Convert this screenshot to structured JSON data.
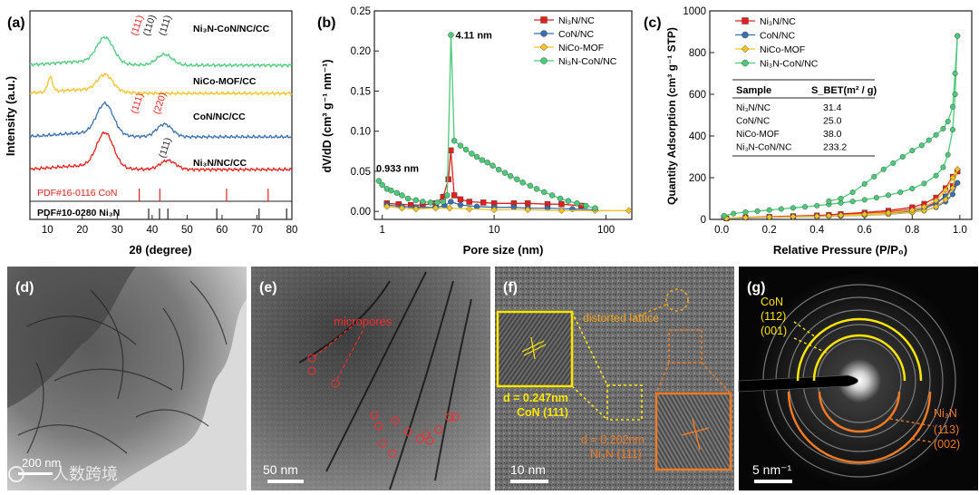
{
  "panels": {
    "a": {
      "label": "(a)"
    },
    "b": {
      "label": "(b)"
    },
    "c": {
      "label": "(c)"
    },
    "d": {
      "label": "(d)",
      "scale": "200 nm"
    },
    "e": {
      "label": "(e)",
      "scale": "50 nm",
      "annotation": "micropores"
    },
    "f": {
      "label": "(f)",
      "scale": "10 nm",
      "annotation": "distorted lattice",
      "d1": "d = 0.247nm",
      "d1_phase": "CoN (111)",
      "d2": "d = 0.202nm",
      "d2_phase": "Ni₃N (111)"
    },
    "g": {
      "label": "(g)",
      "scale": "5 nm⁻¹",
      "con_label": "CoN",
      "con_112": "(112)",
      "con_001": "(001)",
      "ni_label": "Ni₃N",
      "ni_113": "(113)",
      "ni_002": "(002)"
    }
  },
  "watermark": "人数跨境",
  "chart_data": [
    {
      "type": "line",
      "panel": "a",
      "xlabel": "2θ (degree)",
      "ylabel": "Intensity (a.u.)",
      "xlim": [
        5,
        80
      ],
      "xticks": [
        10,
        20,
        30,
        40,
        50,
        60,
        70,
        80
      ],
      "series": [
        {
          "name": "Ni₃N-CoN/NC/CC",
          "color": "#4dc97a",
          "peaks": [
            26.5,
            43.5
          ],
          "peak_labels": [
            {
              "text": "(111)",
              "x": 36.5,
              "color": "#e3211c"
            },
            {
              "text": "(110)",
              "x": 40,
              "color": "#222222"
            },
            {
              "text": "(111)",
              "x": 44.5,
              "color": "#222222"
            }
          ]
        },
        {
          "name": "NiCo-MOF/CC",
          "color": "#f2c226",
          "peaks": [
            10.8,
            26.5
          ]
        },
        {
          "name": "CoN/NC/CC",
          "color": "#3a6fb0",
          "peaks": [
            26.5,
            43.5
          ],
          "peak_labels": [
            {
              "text": "(111)",
              "x": 36.5,
              "color": "#e3211c"
            },
            {
              "text": "(220)",
              "x": 43,
              "color": "#e3211c"
            }
          ]
        },
        {
          "name": "Ni₃N/NC/CC",
          "color": "#e3211c",
          "peaks": [
            26.5,
            44.5
          ],
          "peak_labels": [
            {
              "text": "(111)",
              "x": 44.5,
              "color": "#222222"
            }
          ]
        }
      ],
      "references": [
        {
          "name": "PDF#16-0116 CoN",
          "color": "#e3211c",
          "lines": [
            36.3,
            42.2,
            61.3,
            73.2
          ]
        },
        {
          "name": "PDF#10-0280 Ni₃N",
          "color": "#222222",
          "lines": [
            39.0,
            42.1,
            44.5,
            58.5,
            70.6,
            78.5
          ]
        }
      ]
    },
    {
      "type": "line",
      "panel": "b",
      "xlabel": "Pore size (nm)",
      "ylabel": "dV/dD (cm³ g⁻¹ nm⁻¹)",
      "xscale": "log",
      "xlim": [
        0.85,
        170
      ],
      "ylim": [
        -0.01,
        0.25
      ],
      "xticks": [
        1,
        10,
        100
      ],
      "yticks": [
        0.0,
        0.05,
        0.1,
        0.15,
        0.2,
        0.25
      ],
      "legend": "top-right",
      "annotations": [
        {
          "text": "4.11 nm",
          "x": 4.11,
          "y": 0.22
        },
        {
          "text": "0.933 nm",
          "x": 0.933,
          "y": 0.045
        }
      ],
      "series": [
        {
          "name": "Ni₃N/NC",
          "color": "#e3211c",
          "marker": "square",
          "x": [
            1.1,
            1.4,
            1.8,
            2.3,
            3.0,
            3.5,
            3.9,
            4.1,
            4.4,
            5.0,
            6.0,
            8.0,
            10,
            15,
            20,
            30,
            40,
            60
          ],
          "y": [
            0.01,
            0.009,
            0.008,
            0.008,
            0.01,
            0.018,
            0.04,
            0.076,
            0.02,
            0.015,
            0.012,
            0.011,
            0.01,
            0.01,
            0.01,
            0.009,
            0.009,
            0.007
          ]
        },
        {
          "name": "CoN/NC",
          "color": "#3a6fb0",
          "marker": "circle",
          "x": [
            1.1,
            1.5,
            2.0,
            3.0,
            3.6,
            4.1,
            5.0,
            7.0,
            10,
            15,
            20,
            30,
            50,
            80
          ],
          "y": [
            0.008,
            0.006,
            0.005,
            0.005,
            0.007,
            0.012,
            0.008,
            0.006,
            0.005,
            0.005,
            0.004,
            0.004,
            0.003,
            0.002
          ]
        },
        {
          "name": "NiCo-MOF",
          "color": "#f2c226",
          "marker": "diamond",
          "x": [
            1.1,
            1.5,
            2.0,
            3.0,
            4.0,
            6.0,
            10,
            20,
            40,
            80,
            160
          ],
          "y": [
            0.006,
            0.004,
            0.003,
            0.004,
            0.004,
            0.003,
            0.002,
            0.002,
            0.001,
            0.001,
            0.001
          ]
        },
        {
          "name": "Ni₃N-CoN/NC",
          "color": "#4dc97a",
          "marker": "circle",
          "x": [
            0.93,
            1.0,
            1.1,
            1.2,
            1.35,
            1.5,
            1.7,
            2.0,
            2.3,
            2.7,
            3.1,
            3.5,
            3.8,
            4.11,
            4.4,
            5.0,
            5.6,
            6.3,
            7.0,
            7.8,
            8.7,
            9.7,
            11,
            12.5,
            14,
            16,
            18,
            21,
            24,
            28,
            33,
            39,
            46,
            55,
            66,
            80
          ],
          "y": [
            0.038,
            0.033,
            0.028,
            0.026,
            0.023,
            0.02,
            0.016,
            0.014,
            0.012,
            0.011,
            0.011,
            0.012,
            0.02,
            0.22,
            0.088,
            0.082,
            0.077,
            0.072,
            0.068,
            0.064,
            0.061,
            0.057,
            0.052,
            0.048,
            0.044,
            0.04,
            0.036,
            0.032,
            0.028,
            0.024,
            0.02,
            0.016,
            0.013,
            0.01,
            0.007,
            0.004
          ]
        }
      ]
    },
    {
      "type": "line",
      "panel": "c",
      "xlabel": "Relative Pressure (P/P₀)",
      "ylabel": "Quantity Adsorption (cm³ g⁻¹ STP)",
      "xlim": [
        -0.05,
        1.05
      ],
      "ylim": [
        0,
        1000
      ],
      "xticks": [
        0.0,
        0.2,
        0.4,
        0.6,
        0.8,
        1.0
      ],
      "yticks": [
        0,
        200,
        400,
        600,
        800,
        1000
      ],
      "legend": "top-left",
      "table": {
        "headers": [
          "Sample",
          "S_BET(m² / g)"
        ],
        "rows": [
          [
            "Ni₃N/NC",
            "31.4"
          ],
          [
            "CoN/NC",
            "25.0"
          ],
          [
            "NiCo-MOF",
            "38.0"
          ],
          [
            "Ni₃N-CoN/NC",
            "233.2"
          ]
        ]
      },
      "series": [
        {
          "name": "Ni₃N/NC",
          "color": "#e3211c",
          "marker": "square",
          "adsorption_x": [
            0.02,
            0.1,
            0.2,
            0.3,
            0.4,
            0.5,
            0.6,
            0.7,
            0.8,
            0.85,
            0.9,
            0.94,
            0.97,
            0.99
          ],
          "adsorption_y": [
            5,
            10,
            13,
            16,
            19,
            23,
            28,
            35,
            48,
            60,
            80,
            110,
            160,
            230
          ],
          "desorption_x": [
            0.99,
            0.97,
            0.94,
            0.9,
            0.85,
            0.8,
            0.7,
            0.6,
            0.5,
            0.45
          ],
          "desorption_y": [
            230,
            205,
            150,
            105,
            75,
            58,
            42,
            33,
            26,
            22
          ]
        },
        {
          "name": "CoN/NC",
          "color": "#3a6fb0",
          "marker": "circle",
          "adsorption_x": [
            0.02,
            0.1,
            0.2,
            0.3,
            0.4,
            0.5,
            0.6,
            0.7,
            0.8,
            0.85,
            0.9,
            0.94,
            0.97,
            0.99
          ],
          "adsorption_y": [
            4,
            8,
            10,
            12,
            14,
            17,
            20,
            25,
            34,
            42,
            58,
            85,
            120,
            175
          ],
          "desorption_x": [
            0.99,
            0.97,
            0.94,
            0.9,
            0.85,
            0.8,
            0.7,
            0.6,
            0.5,
            0.45
          ],
          "desorption_y": [
            175,
            150,
            110,
            75,
            52,
            40,
            30,
            24,
            19,
            16
          ]
        },
        {
          "name": "NiCo-MOF",
          "color": "#f2c226",
          "marker": "diamond",
          "adsorption_x": [
            0.02,
            0.1,
            0.2,
            0.3,
            0.4,
            0.5,
            0.6,
            0.7,
            0.8,
            0.85,
            0.9,
            0.94,
            0.97,
            0.99
          ],
          "adsorption_y": [
            5,
            9,
            11,
            13,
            15,
            18,
            21,
            26,
            34,
            42,
            60,
            95,
            150,
            240
          ],
          "desorption_x": [
            0.99,
            0.97,
            0.94,
            0.9,
            0.85,
            0.8,
            0.7,
            0.6,
            0.5,
            0.45
          ],
          "desorption_y": [
            240,
            200,
            140,
            90,
            60,
            44,
            32,
            25,
            20,
            17
          ]
        },
        {
          "name": "Ni₃N-CoN/NC",
          "color": "#4dc97a",
          "marker": "circle",
          "adsorption_x": [
            0.01,
            0.05,
            0.1,
            0.15,
            0.2,
            0.25,
            0.3,
            0.35,
            0.4,
            0.45,
            0.5,
            0.55,
            0.6,
            0.65,
            0.7,
            0.75,
            0.8,
            0.85,
            0.9,
            0.93,
            0.95,
            0.97,
            0.98,
            0.99
          ],
          "adsorption_y": [
            18,
            28,
            35,
            40,
            45,
            50,
            55,
            60,
            66,
            72,
            79,
            86,
            94,
            104,
            116,
            130,
            148,
            172,
            210,
            250,
            310,
            430,
            600,
            880
          ],
          "desorption_x": [
            0.99,
            0.98,
            0.97,
            0.95,
            0.93,
            0.9,
            0.87,
            0.84,
            0.8,
            0.76,
            0.72,
            0.68,
            0.64,
            0.6,
            0.55,
            0.5,
            0.45
          ],
          "desorption_y": [
            880,
            700,
            540,
            470,
            435,
            405,
            380,
            355,
            330,
            300,
            270,
            240,
            205,
            170,
            130,
            100,
            88
          ]
        }
      ]
    }
  ]
}
